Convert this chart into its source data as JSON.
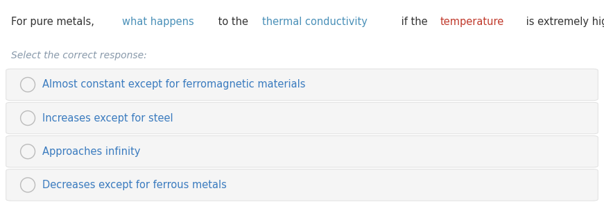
{
  "question_parts": [
    [
      "For pure metals, ",
      "#333333"
    ],
    [
      "what happens",
      "#4a90b8"
    ],
    [
      " to the ",
      "#333333"
    ],
    [
      "thermal conductivity",
      "#4a90b8"
    ],
    [
      " if the ",
      "#333333"
    ],
    [
      "temperature",
      "#c0392b"
    ],
    [
      " is extremely high?",
      "#333333"
    ]
  ],
  "instruction": "Select the correct response:",
  "options": [
    "Almost constant except for ferromagnetic materials",
    "Increases except for steel",
    "Approaches infinity",
    "Decreases except for ferrous metals"
  ],
  "bg_color": "#ffffff",
  "option_bg_color": "#f5f5f5",
  "option_border_color": "#e0e0e0",
  "option_text_color": "#3a7bbf",
  "instruction_color": "#8899aa",
  "radio_color": "#bbbbbb",
  "question_font_size": 10.5,
  "instruction_font_size": 10,
  "option_font_size": 10.5
}
